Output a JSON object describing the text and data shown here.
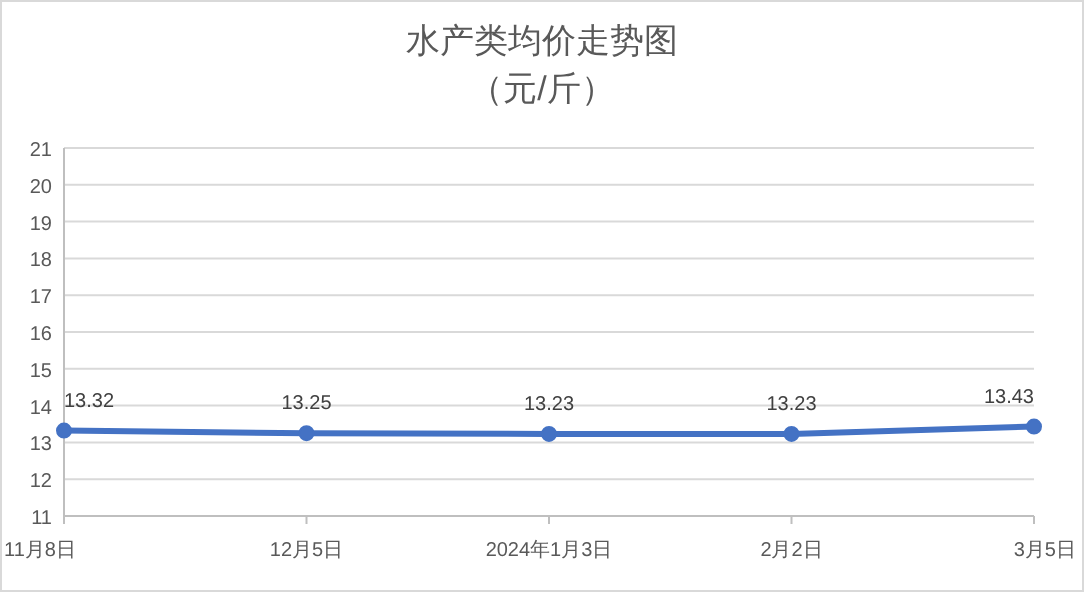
{
  "chart_data": {
    "type": "line",
    "title": "水产类均价走势图",
    "subtitle": "（元/斤）",
    "categories": [
      "11月8日",
      "12月5日",
      "2024年1月3日",
      "2月2日",
      "3月5日"
    ],
    "values": [
      13.32,
      13.25,
      13.23,
      13.23,
      13.43
    ],
    "color": "#4472c4",
    "ylim": [
      11,
      21
    ],
    "yticks": [
      11,
      12,
      13,
      14,
      15,
      16,
      17,
      18,
      19,
      20,
      21
    ],
    "grid": "y",
    "data_labels": true,
    "marker": "circle"
  }
}
